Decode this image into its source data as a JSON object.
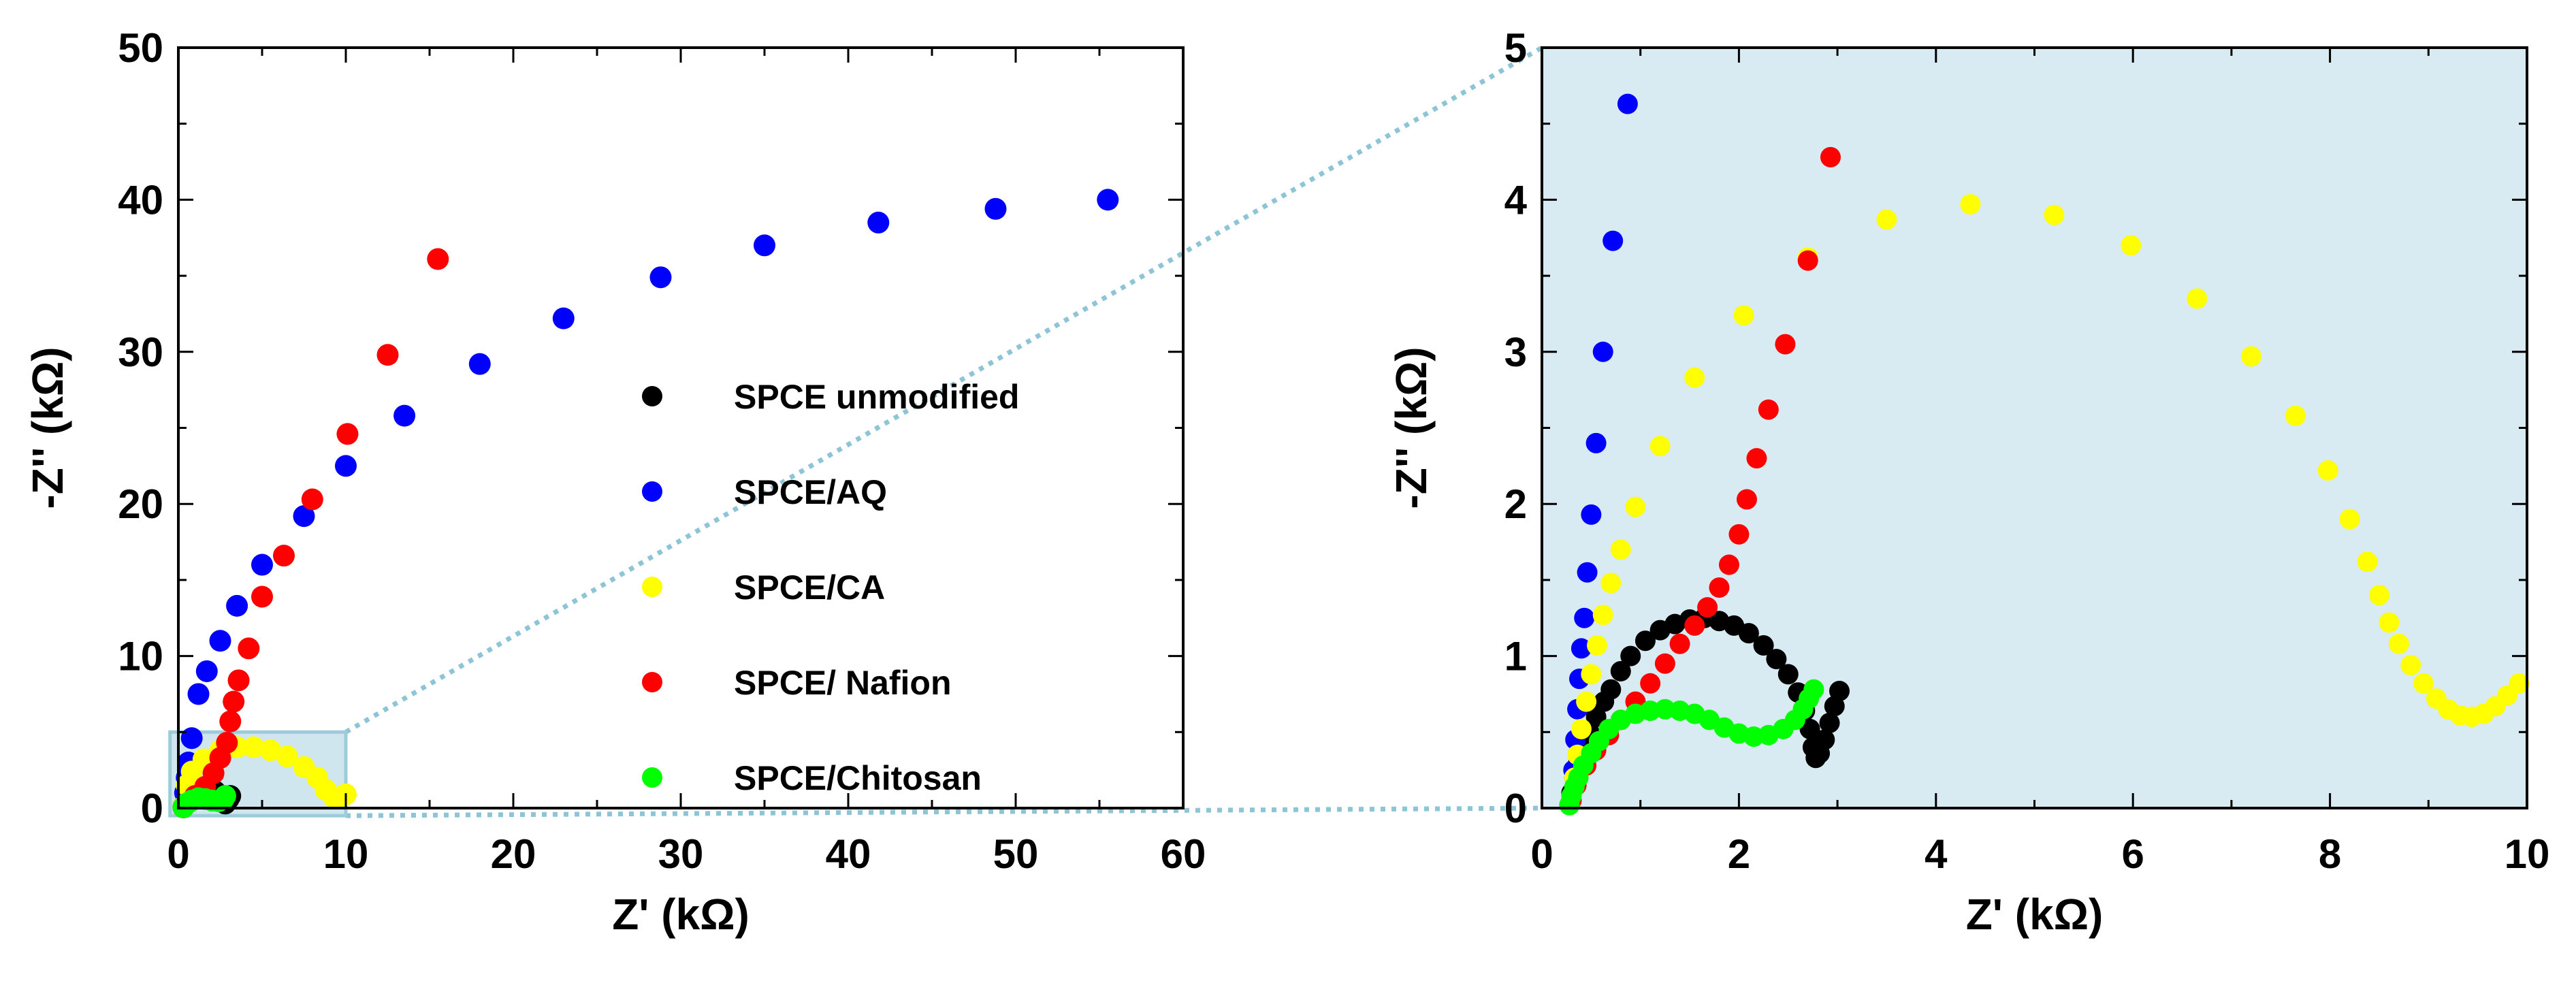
{
  "chart_data": [
    {
      "type": "scatter",
      "panel": "main",
      "xlabel": "Z' (kΩ)",
      "ylabel": "-Z'' (kΩ)",
      "xlim": [
        0,
        60
      ],
      "ylim": [
        0,
        50
      ],
      "xticks": [
        0,
        10,
        20,
        30,
        40,
        50,
        60
      ],
      "yticks": [
        0,
        10,
        20,
        30,
        40,
        50
      ],
      "zoom_region": {
        "x": [
          -0.5,
          10
        ],
        "y": [
          -0.5,
          5
        ]
      },
      "series": [
        {
          "name": "SPCE unmodified",
          "color": "#000000",
          "points": [
            [
              0.3,
              0.05
            ],
            [
              0.6,
              0.5
            ],
            [
              0.9,
              0.9
            ],
            [
              1.3,
              1.15
            ],
            [
              1.7,
              1.25
            ],
            [
              2.2,
              1.1
            ],
            [
              2.6,
              0.7
            ],
            [
              2.8,
              0.3
            ],
            [
              3.0,
              0.6
            ],
            [
              3.1,
              0.8
            ]
          ]
        },
        {
          "name": "SPCE/AQ",
          "color": "#0000ff",
          "points": [
            [
              0.3,
              0.1
            ],
            [
              0.4,
              1.0
            ],
            [
              0.5,
              2.0
            ],
            [
              0.6,
              3.0
            ],
            [
              0.8,
              4.6
            ],
            [
              1.2,
              7.5
            ],
            [
              1.7,
              9.0
            ],
            [
              2.5,
              11.0
            ],
            [
              3.5,
              13.3
            ],
            [
              5.0,
              16.0
            ],
            [
              7.5,
              19.2
            ],
            [
              10.0,
              22.5
            ],
            [
              13.5,
              25.8
            ],
            [
              18.0,
              29.2
            ],
            [
              23.0,
              32.2
            ],
            [
              28.8,
              34.9
            ],
            [
              35.0,
              37.0
            ],
            [
              41.8,
              38.5
            ],
            [
              48.8,
              39.4
            ],
            [
              55.5,
              40.0
            ]
          ]
        },
        {
          "name": "SPCE/CA",
          "color": "#ffff00",
          "points": [
            [
              0.3,
              0.1
            ],
            [
              0.5,
              1.5
            ],
            [
              0.8,
              2.4
            ],
            [
              1.5,
              3.2
            ],
            [
              2.5,
              3.8
            ],
            [
              3.5,
              4.0
            ],
            [
              4.5,
              4.0
            ],
            [
              5.5,
              3.8
            ],
            [
              6.5,
              3.4
            ],
            [
              7.5,
              2.7
            ],
            [
              8.3,
              2.0
            ],
            [
              8.8,
              1.2
            ],
            [
              9.3,
              0.7
            ],
            [
              9.8,
              0.8
            ],
            [
              10.0,
              0.9
            ]
          ]
        },
        {
          "name": "SPCE/ Nafion",
          "color": "#ff0000",
          "points": [
            [
              0.3,
              0.05
            ],
            [
              1.0,
              0.8
            ],
            [
              1.6,
              1.4
            ],
            [
              2.1,
              2.3
            ],
            [
              2.5,
              3.3
            ],
            [
              2.9,
              4.3
            ],
            [
              3.1,
              5.7
            ],
            [
              3.3,
              7.0
            ],
            [
              3.6,
              8.4
            ],
            [
              4.2,
              10.5
            ],
            [
              5.0,
              13.9
            ],
            [
              6.3,
              16.6
            ],
            [
              8.0,
              20.3
            ],
            [
              10.1,
              24.6
            ],
            [
              12.5,
              29.8
            ],
            [
              15.5,
              36.1
            ]
          ]
        },
        {
          "name": "SPCE/Chitosan",
          "color": "#00ff00",
          "points": [
            [
              0.3,
              0.05
            ],
            [
              0.5,
              0.3
            ],
            [
              0.8,
              0.5
            ],
            [
              1.2,
              0.65
            ],
            [
              1.6,
              0.6
            ],
            [
              2.0,
              0.5
            ],
            [
              2.4,
              0.45
            ],
            [
              2.7,
              0.6
            ],
            [
              2.8,
              0.8
            ]
          ]
        }
      ]
    },
    {
      "type": "scatter",
      "panel": "inset",
      "xlabel": "Z' (kΩ)",
      "ylabel": "-Z'' (kΩ)",
      "xlim": [
        0,
        10
      ],
      "ylim": [
        0,
        5
      ],
      "xticks": [
        0,
        2,
        4,
        6,
        8,
        10
      ],
      "yticks": [
        0,
        1,
        2,
        3,
        4,
        5
      ],
      "background": "#d8ebf2",
      "series": [
        {
          "name": "SPCE unmodified",
          "color": "#000000",
          "points": [
            [
              0.28,
              0.02
            ],
            [
              0.3,
              0.1
            ],
            [
              0.33,
              0.2
            ],
            [
              0.37,
              0.3
            ],
            [
              0.42,
              0.4
            ],
            [
              0.48,
              0.5
            ],
            [
              0.55,
              0.6
            ],
            [
              0.63,
              0.7
            ],
            [
              0.7,
              0.78
            ],
            [
              0.8,
              0.9
            ],
            [
              0.9,
              1.0
            ],
            [
              1.05,
              1.1
            ],
            [
              1.2,
              1.17
            ],
            [
              1.35,
              1.21
            ],
            [
              1.5,
              1.24
            ],
            [
              1.65,
              1.25
            ],
            [
              1.8,
              1.23
            ],
            [
              1.95,
              1.2
            ],
            [
              2.1,
              1.15
            ],
            [
              2.25,
              1.07
            ],
            [
              2.38,
              0.98
            ],
            [
              2.5,
              0.88
            ],
            [
              2.6,
              0.76
            ],
            [
              2.67,
              0.64
            ],
            [
              2.72,
              0.52
            ],
            [
              2.75,
              0.4
            ],
            [
              2.78,
              0.33
            ],
            [
              2.82,
              0.36
            ],
            [
              2.87,
              0.45
            ],
            [
              2.92,
              0.56
            ],
            [
              2.97,
              0.67
            ],
            [
              3.02,
              0.77
            ]
          ]
        },
        {
          "name": "SPCE/AQ",
          "color": "#0000ff",
          "points": [
            [
              0.3,
              0.05
            ],
            [
              0.32,
              0.25
            ],
            [
              0.34,
              0.45
            ],
            [
              0.36,
              0.65
            ],
            [
              0.38,
              0.85
            ],
            [
              0.4,
              1.05
            ],
            [
              0.43,
              1.25
            ],
            [
              0.46,
              1.55
            ],
            [
              0.5,
              1.93
            ],
            [
              0.55,
              2.4
            ],
            [
              0.62,
              3.0
            ],
            [
              0.72,
              3.73
            ],
            [
              0.87,
              4.63
            ]
          ]
        },
        {
          "name": "SPCE/CA",
          "color": "#ffff00",
          "points": [
            [
              0.3,
              0.05
            ],
            [
              0.33,
              0.2
            ],
            [
              0.36,
              0.35
            ],
            [
              0.4,
              0.52
            ],
            [
              0.45,
              0.7
            ],
            [
              0.5,
              0.88
            ],
            [
              0.56,
              1.07
            ],
            [
              0.62,
              1.27
            ],
            [
              0.7,
              1.48
            ],
            [
              0.8,
              1.7
            ],
            [
              0.95,
              1.98
            ],
            [
              1.2,
              2.38
            ],
            [
              1.55,
              2.83
            ],
            [
              2.05,
              3.24
            ],
            [
              2.7,
              3.62
            ],
            [
              3.5,
              3.87
            ],
            [
              4.35,
              3.97
            ],
            [
              5.2,
              3.9
            ],
            [
              5.98,
              3.7
            ],
            [
              6.65,
              3.35
            ],
            [
              7.2,
              2.97
            ],
            [
              7.65,
              2.58
            ],
            [
              7.98,
              2.22
            ],
            [
              8.2,
              1.9
            ],
            [
              8.38,
              1.62
            ],
            [
              8.5,
              1.4
            ],
            [
              8.6,
              1.22
            ],
            [
              8.7,
              1.08
            ],
            [
              8.82,
              0.94
            ],
            [
              8.95,
              0.82
            ],
            [
              9.08,
              0.72
            ],
            [
              9.2,
              0.65
            ],
            [
              9.32,
              0.61
            ],
            [
              9.44,
              0.6
            ],
            [
              9.56,
              0.62
            ],
            [
              9.68,
              0.67
            ],
            [
              9.8,
              0.74
            ],
            [
              9.92,
              0.82
            ]
          ]
        },
        {
          "name": "SPCE/ Nafion",
          "color": "#ff0000",
          "points": [
            [
              0.3,
              0.05
            ],
            [
              0.35,
              0.15
            ],
            [
              0.45,
              0.28
            ],
            [
              0.55,
              0.38
            ],
            [
              0.68,
              0.48
            ],
            [
              0.8,
              0.58
            ],
            [
              0.95,
              0.7
            ],
            [
              1.1,
              0.82
            ],
            [
              1.25,
              0.95
            ],
            [
              1.4,
              1.08
            ],
            [
              1.55,
              1.2
            ],
            [
              1.68,
              1.32
            ],
            [
              1.8,
              1.45
            ],
            [
              1.9,
              1.6
            ],
            [
              2.0,
              1.8
            ],
            [
              2.08,
              2.03
            ],
            [
              2.18,
              2.3
            ],
            [
              2.3,
              2.62
            ],
            [
              2.47,
              3.05
            ],
            [
              2.7,
              3.6
            ],
            [
              2.93,
              4.28
            ]
          ]
        },
        {
          "name": "SPCE/Chitosan",
          "color": "#00ff00",
          "points": [
            [
              0.28,
              0.02
            ],
            [
              0.3,
              0.08
            ],
            [
              0.33,
              0.14
            ],
            [
              0.37,
              0.2
            ],
            [
              0.42,
              0.28
            ],
            [
              0.5,
              0.36
            ],
            [
              0.58,
              0.44
            ],
            [
              0.68,
              0.52
            ],
            [
              0.8,
              0.58
            ],
            [
              0.95,
              0.62
            ],
            [
              1.1,
              0.64
            ],
            [
              1.25,
              0.65
            ],
            [
              1.4,
              0.64
            ],
            [
              1.55,
              0.62
            ],
            [
              1.7,
              0.58
            ],
            [
              1.85,
              0.53
            ],
            [
              2.0,
              0.49
            ],
            [
              2.15,
              0.47
            ],
            [
              2.3,
              0.48
            ],
            [
              2.45,
              0.52
            ],
            [
              2.57,
              0.58
            ],
            [
              2.65,
              0.65
            ],
            [
              2.71,
              0.72
            ],
            [
              2.76,
              0.78
            ]
          ]
        }
      ]
    }
  ]
}
